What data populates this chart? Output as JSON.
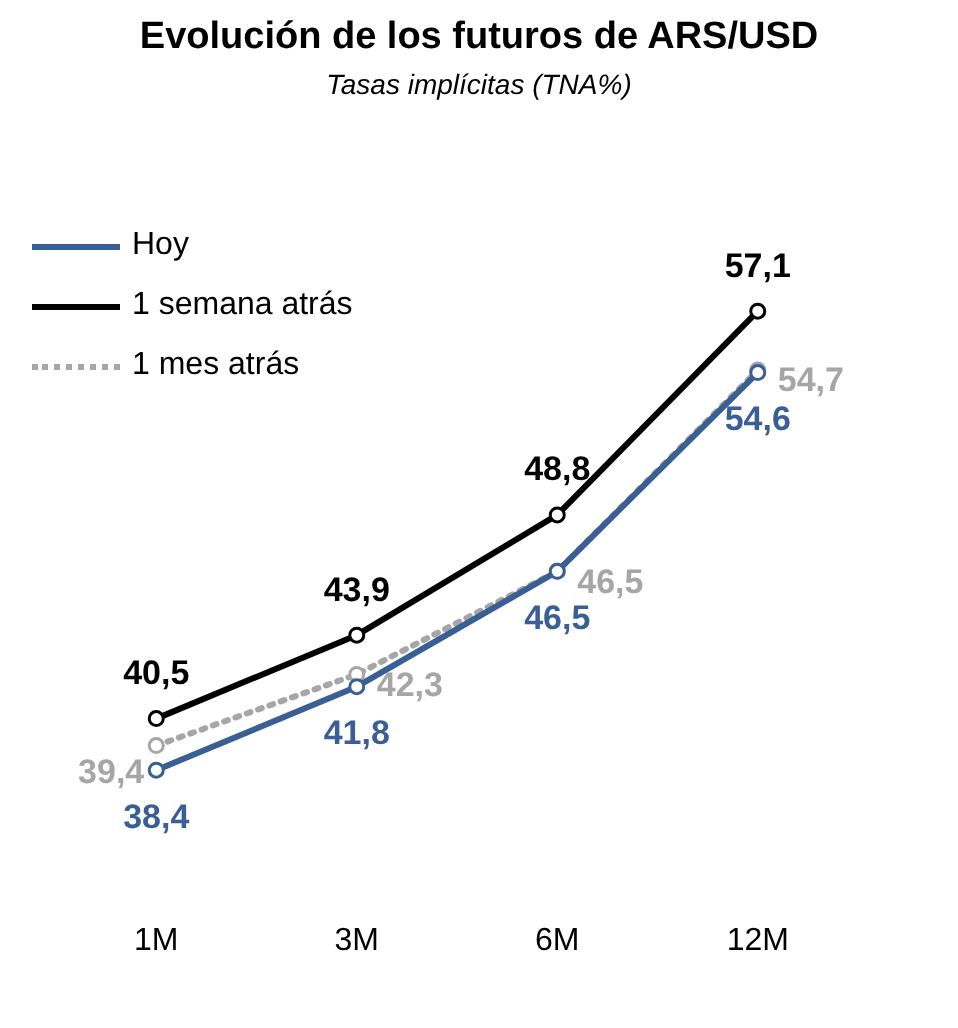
{
  "chart_data": {
    "type": "line",
    "title": "Evolución de los futuros de ARS/USD",
    "subtitle": "Tasas implícitas (TNA%)",
    "categories": [
      "1M",
      "3M",
      "6M",
      "12M"
    ],
    "marker": "circle",
    "legend": "top left",
    "grid": false,
    "tick_labels": "x",
    "series": [
      {
        "name": "Hoy",
        "color": "#3a5f94",
        "line_style": "solid",
        "values": [
          38.4,
          41.8,
          46.5,
          54.6
        ],
        "value_labels": [
          "38,4",
          "41,8",
          "46,5",
          "54,6"
        ]
      },
      {
        "name": "1 semana atrás",
        "color": "#000000",
        "line_style": "solid",
        "values": [
          40.5,
          43.9,
          48.8,
          57.1
        ],
        "value_labels": [
          "40,5",
          "43,9",
          "48,8",
          "57,1"
        ]
      },
      {
        "name": "1 mes atrás",
        "color": "#a6a6a6",
        "line_style": "dotted",
        "values": [
          39.4,
          42.3,
          46.5,
          54.7
        ],
        "value_labels": [
          "39,4",
          "42,3",
          "46,5",
          "54,7"
        ]
      }
    ]
  }
}
